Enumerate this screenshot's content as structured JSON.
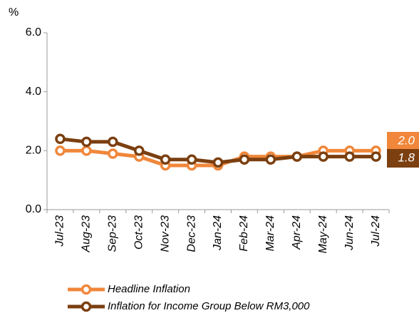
{
  "chart_data": {
    "type": "line",
    "y_unit": "%",
    "categories": [
      "Jul-23",
      "Aug-23",
      "Sep-23",
      "Oct-23",
      "Nov-23",
      "Dec-23",
      "Jan-24",
      "Feb-24",
      "Mar-24",
      "Apr-24",
      "May-24",
      "Jun-24",
      "Jul-24"
    ],
    "series": [
      {
        "name": "Headline Inflation",
        "color": "#f0873a",
        "values": [
          2.0,
          2.0,
          1.9,
          1.8,
          1.5,
          1.5,
          1.5,
          1.8,
          1.8,
          1.8,
          2.0,
          2.0,
          2.0
        ],
        "end_label": "2.0"
      },
      {
        "name": "Inflation for Income Group Below RM3,000",
        "color": "#7b3f10",
        "values": [
          2.4,
          2.3,
          2.3,
          2.0,
          1.7,
          1.7,
          1.6,
          1.7,
          1.7,
          1.8,
          1.8,
          1.8,
          1.8
        ],
        "end_label": "1.8"
      }
    ],
    "ylim": [
      0,
      6
    ],
    "yticks": [
      {
        "value": 0,
        "label": "0.0"
      },
      {
        "value": 2,
        "label": "2.0"
      },
      {
        "value": 4,
        "label": "4.0"
      },
      {
        "value": 6,
        "label": "6.0"
      }
    ],
    "grid": false
  }
}
